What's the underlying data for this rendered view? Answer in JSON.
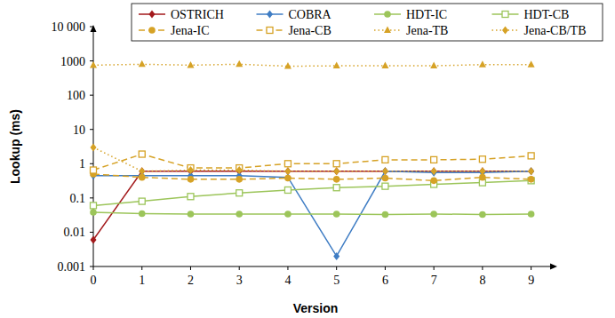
{
  "chart_data": {
    "type": "line",
    "x_label": "Version",
    "y_label": "Lookup (ms)",
    "x": [
      0,
      1,
      2,
      3,
      4,
      5,
      6,
      7,
      8,
      9
    ],
    "xlim": [
      0,
      9.5
    ],
    "xticks": [
      0,
      1,
      2,
      3,
      4,
      5,
      6,
      7,
      8,
      9
    ],
    "log": "y",
    "ylim": [
      0.001,
      10000
    ],
    "yticks": [
      0.001,
      0.01,
      0.1,
      1,
      10,
      100,
      1000,
      {
        "value": 10000,
        "label": "10 000"
      }
    ],
    "grid": false,
    "legend": "top",
    "series": [
      {
        "name": "OSTRICH",
        "color": "#a31a1c",
        "marker": "diamond",
        "line_style": "solid",
        "values": [
          0.006,
          0.6,
          0.6,
          0.6,
          0.6,
          0.6,
          0.6,
          0.6,
          0.6,
          0.6
        ]
      },
      {
        "name": "COBRA",
        "color": "#3f7dc4",
        "marker": "diamond",
        "line_style": "solid",
        "values": [
          0.45,
          0.45,
          0.45,
          0.45,
          0.4,
          0.002,
          0.6,
          0.55,
          0.55,
          0.6
        ]
      },
      {
        "name": "HDT-IC",
        "color": "#9cc55a",
        "marker": "circle",
        "line_style": "solid",
        "values": [
          0.038,
          0.035,
          0.034,
          0.034,
          0.034,
          0.034,
          0.033,
          0.034,
          0.033,
          0.034
        ]
      },
      {
        "name": "HDT-CB",
        "color": "#9cc55a",
        "marker": "square-open",
        "line_style": "solid",
        "values": [
          0.06,
          0.08,
          0.11,
          0.14,
          0.17,
          0.2,
          0.22,
          0.25,
          0.28,
          0.32
        ]
      },
      {
        "name": "Jena-IC",
        "color": "#d6a226",
        "marker": "circle",
        "line_style": "dashed",
        "values": [
          0.5,
          0.4,
          0.35,
          0.35,
          0.38,
          0.35,
          0.38,
          0.32,
          0.4,
          0.35
        ]
      },
      {
        "name": "Jena-CB",
        "color": "#d6a226",
        "marker": "square-open",
        "line_style": "dashed",
        "values": [
          0.65,
          1.9,
          0.75,
          0.75,
          1.0,
          1.0,
          1.3,
          1.3,
          1.35,
          1.7
        ]
      },
      {
        "name": "Jena-TB",
        "color": "#d6a226",
        "marker": "triangle",
        "line_style": "dotted",
        "values": [
          750,
          800,
          750,
          800,
          700,
          720,
          720,
          720,
          780,
          780
        ]
      },
      {
        "name": "Jena-CB/TB",
        "color": "#d6a226",
        "marker": "diamond",
        "line_style": "dotted",
        "values": [
          3,
          0.6,
          0.65,
          0.65,
          0.6,
          0.6,
          0.6,
          0.6,
          0.6,
          0.6
        ]
      }
    ]
  }
}
